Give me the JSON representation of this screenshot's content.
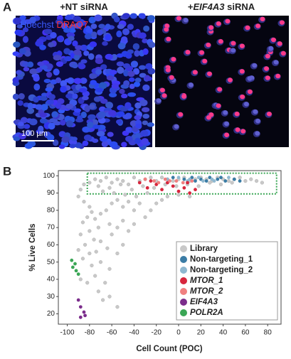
{
  "panel_labels": [
    "A",
    "B"
  ],
  "panel_a": {
    "images": [
      {
        "title": [
          {
            "text": "+NT siRNA"
          }
        ],
        "stain_labels": [
          {
            "text": "Hoechst",
            "color": "#3b5bff"
          },
          {
            "text": "DRAQ7",
            "color": "#ff3030"
          }
        ],
        "scale_bar": "100 µm"
      },
      {
        "title": [
          {
            "text": "+"
          },
          {
            "text": "EIF4A3",
            "italic": true
          },
          {
            "text": " siRNA"
          }
        ]
      }
    ]
  },
  "chart_data": {
    "type": "scatter",
    "x_label": "Cell Count (POC)",
    "y_label": "% Live Cells",
    "xlim": [
      -108,
      92
    ],
    "ylim": [
      14,
      103
    ],
    "xticks": [
      -100,
      -80,
      -60,
      -40,
      -20,
      0,
      20,
      40,
      60,
      80
    ],
    "yticks": [
      20,
      30,
      40,
      50,
      60,
      70,
      80,
      90,
      100
    ],
    "highlight": {
      "x": [
        -82,
        88
      ],
      "y": [
        89.5,
        101.5
      ],
      "color": "#3aa655"
    },
    "legend": "lower right",
    "series": [
      {
        "name": "Library",
        "color": "#c8c8c8",
        "x": [
          -80,
          -75,
          -70,
          -65,
          -60,
          -55,
          -50,
          -45,
          -40,
          -35,
          -30,
          -25,
          -20,
          -15,
          -10,
          -5,
          0,
          5,
          10,
          15,
          20,
          25,
          30,
          35,
          40,
          45,
          50,
          55,
          60,
          65,
          70,
          75,
          -72,
          -62,
          -52,
          -42,
          -32,
          -22,
          -12,
          -2,
          8,
          18,
          28,
          38,
          48,
          -85,
          -88,
          -68,
          -58,
          -48,
          -38,
          -28,
          -90,
          -85,
          -80,
          -78,
          -82,
          -75,
          -86,
          -70,
          -65,
          -60,
          -55,
          -50,
          -45,
          -40,
          -35,
          -62,
          -72,
          -80,
          -88,
          -76,
          -84,
          -70,
          -60,
          -55,
          -50,
          -45,
          -40,
          -30,
          -25,
          -20,
          -90,
          -80,
          -86,
          -74,
          -64,
          -55,
          -50,
          -70,
          -78,
          -62,
          -75,
          -66,
          -72,
          -62,
          -68,
          -55,
          -82,
          -88,
          -15,
          -10,
          0,
          10
        ],
        "values": [
          96,
          98,
          97,
          99,
          96,
          98,
          97,
          95,
          99,
          97,
          98,
          99,
          97,
          99,
          98,
          97,
          98,
          99,
          97,
          98,
          99,
          98,
          97,
          99,
          98,
          97,
          98,
          99,
          97,
          98,
          97,
          96,
          94,
          93,
          95,
          92,
          94,
          93,
          95,
          94,
          95,
          94,
          96,
          95,
          96,
          95,
          92,
          91,
          90,
          89,
          88,
          90,
          88,
          85,
          82,
          79,
          76,
          75,
          73,
          78,
          80,
          84,
          86,
          82,
          85,
          80,
          84,
          72,
          70,
          68,
          66,
          63,
          60,
          62,
          66,
          70,
          74,
          68,
          72,
          76,
          80,
          84,
          57,
          55,
          52,
          56,
          58,
          55,
          60,
          50,
          48,
          46,
          42,
          38,
          33,
          30,
          28,
          24,
          38,
          40,
          86,
          88,
          89,
          88
        ]
      },
      {
        "name": "Non-targeting_1",
        "color": "#3a7ca5",
        "x": [
          5,
          12,
          20,
          28,
          35,
          42,
          50,
          55,
          -5,
          15,
          25,
          38
        ],
        "values": [
          98,
          99,
          98,
          99,
          98,
          97,
          98,
          97,
          99,
          97,
          97,
          99
        ]
      },
      {
        "name": "Non-targeting_2",
        "color": "#8fb8d0",
        "x": [
          0,
          10,
          18,
          22,
          30,
          45,
          -10,
          32,
          8
        ],
        "values": [
          99,
          98,
          99,
          97,
          98,
          99,
          98,
          97,
          97
        ]
      },
      {
        "name": "MTOR_1",
        "italic": true,
        "color": "#d7263d",
        "x": [
          -28,
          -20,
          -15,
          -10,
          -5,
          0,
          5,
          10,
          -25,
          15,
          8,
          -35
        ],
        "values": [
          93,
          95,
          92,
          96,
          94,
          91,
          93,
          90,
          97,
          92,
          96,
          96
        ]
      },
      {
        "name": "MTOR_2",
        "italic": true,
        "color": "#f08080",
        "x": [
          -22,
          -18,
          -12,
          -8,
          -2,
          4,
          -30,
          12
        ],
        "values": [
          97,
          96,
          98,
          97,
          97,
          96,
          98,
          97
        ]
      },
      {
        "name": "EIF4A3",
        "italic": true,
        "color": "#7b2d8b",
        "x": [
          -90,
          -88,
          -85,
          -88,
          -84
        ],
        "values": [
          28,
          24,
          21,
          18,
          19
        ]
      },
      {
        "name": "POLR2A",
        "italic": true,
        "color": "#3aa655",
        "x": [
          -96,
          -93,
          -95,
          -92,
          -90
        ],
        "values": [
          51,
          49,
          47,
          45,
          43
        ]
      }
    ]
  }
}
